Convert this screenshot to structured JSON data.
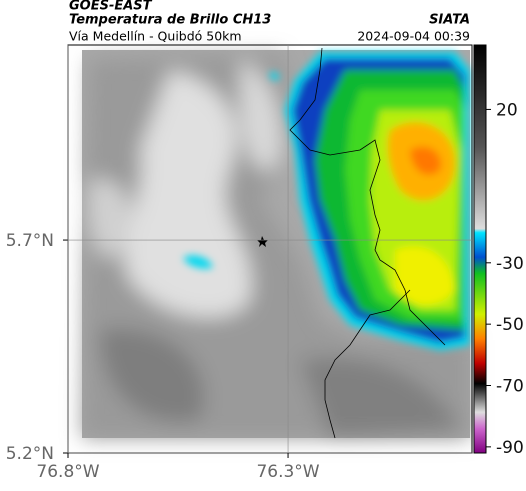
{
  "header": {
    "title": "GOES-EAST",
    "subtitle": "Temperatura de Brillo CH13",
    "route": "Vía Medellín - Quibdó 50km",
    "source": "SIATA",
    "timestamp": "2024-09-04 00:39"
  },
  "map": {
    "lat_range": [
      5.2,
      6.158
    ],
    "lon_range": [
      -76.8,
      -75.882
    ],
    "lat_ticks": [
      {
        "value": 5.7,
        "label": "5.7°N"
      },
      {
        "value": 5.2,
        "label": "5.2°N"
      }
    ],
    "lon_ticks": [
      {
        "value": -76.8,
        "label": "76.8°W"
      },
      {
        "value": -76.3,
        "label": "76.3°W"
      }
    ],
    "colorbar": {
      "range": [
        41,
        -92
      ],
      "ticks": [
        20,
        -30,
        -50,
        -70,
        -90
      ]
    }
  }
}
